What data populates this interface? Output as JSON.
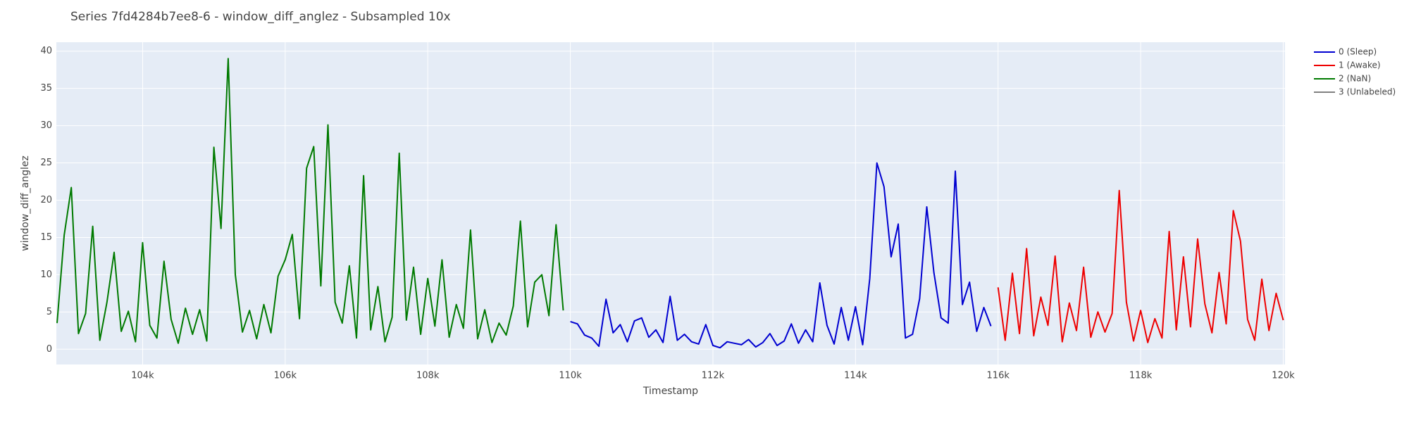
{
  "chart_data": {
    "type": "line",
    "title": "Series 7fd4284b7ee8-6 - window_diff_anglez - Subsampled 10x",
    "x_label": "Timestamp",
    "y_label": "window_diff_anglez",
    "xlim": [
      102790,
      120025
    ],
    "ylim": [
      -2.05,
      41.2
    ],
    "xticks": [
      {
        "value": 104000,
        "label": "104k"
      },
      {
        "value": 106000,
        "label": "106k"
      },
      {
        "value": 108000,
        "label": "108k"
      },
      {
        "value": 110000,
        "label": "110k"
      },
      {
        "value": 112000,
        "label": "112k"
      },
      {
        "value": 114000,
        "label": "114k"
      },
      {
        "value": 116000,
        "label": "116k"
      },
      {
        "value": 118000,
        "label": "118k"
      },
      {
        "value": 120000,
        "label": "120k"
      }
    ],
    "yticks": [
      0,
      5,
      10,
      15,
      20,
      25,
      30,
      35,
      40
    ],
    "grid": true,
    "legend": "right",
    "series": [
      {
        "name": "0 (Sleep)",
        "color": "#0000d0",
        "x": [
          110000,
          110100,
          110200,
          110300,
          110400,
          110500,
          110600,
          110700,
          110800,
          110900,
          111000,
          111100,
          111200,
          111300,
          111400,
          111500,
          111600,
          111700,
          111800,
          111900,
          112000,
          112100,
          112200,
          112300,
          112400,
          112500,
          112600,
          112700,
          112800,
          112900,
          113000,
          113100,
          113200,
          113300,
          113400,
          113500,
          113600,
          113700,
          113800,
          113900,
          114000,
          114100,
          114200,
          114300,
          114400,
          114500,
          114600,
          114700,
          114800,
          114900,
          115000,
          115100,
          115200,
          115300,
          115400,
          115500,
          115600,
          115700,
          115800,
          115900
        ],
        "values": [
          3.7,
          3.4,
          1.9,
          1.5,
          0.4,
          6.7,
          2.2,
          3.3,
          1.0,
          3.8,
          4.2,
          1.6,
          2.6,
          0.9,
          7.1,
          1.2,
          2.0,
          1.0,
          0.7,
          3.3,
          0.5,
          0.2,
          1.0,
          0.8,
          0.6,
          1.3,
          0.3,
          0.9,
          2.1,
          0.5,
          1.1,
          3.4,
          0.8,
          2.6,
          1.0,
          8.9,
          3.2,
          0.7,
          5.6,
          1.2,
          5.7,
          0.6,
          9.5,
          25.0,
          21.8,
          12.4,
          16.8,
          1.5,
          2.0,
          6.8,
          19.1,
          10.3,
          4.2,
          3.5,
          23.9,
          6.0,
          9.0,
          2.4,
          5.6,
          3.1
        ]
      },
      {
        "name": "1 (Awake)",
        "color": "#ee0000",
        "x": [
          116000,
          116100,
          116200,
          116300,
          116400,
          116500,
          116600,
          116700,
          116800,
          116900,
          117000,
          117100,
          117200,
          117300,
          117400,
          117500,
          117600,
          117700,
          117800,
          117900,
          118000,
          118100,
          118200,
          118300,
          118400,
          118500,
          118600,
          118700,
          118800,
          118900,
          119000,
          119100,
          119200,
          119300,
          119400,
          119500,
          119600,
          119700,
          119800,
          119900,
          120000
        ],
        "values": [
          8.3,
          1.2,
          10.2,
          2.1,
          13.5,
          1.8,
          7.0,
          3.2,
          12.5,
          1.0,
          6.2,
          2.5,
          11.0,
          1.6,
          5.0,
          2.3,
          4.8,
          21.3,
          6.3,
          1.1,
          5.2,
          0.9,
          4.1,
          1.5,
          15.8,
          2.6,
          12.4,
          3.0,
          14.8,
          6.1,
          2.2,
          10.3,
          3.4,
          18.6,
          14.5,
          4.0,
          1.2,
          9.4,
          2.5,
          7.5,
          3.9
        ]
      },
      {
        "name": "2 (NaN)",
        "color": "#007a00",
        "x": [
          102800,
          102900,
          103000,
          103100,
          103200,
          103300,
          103400,
          103500,
          103600,
          103700,
          103800,
          103900,
          104000,
          104100,
          104200,
          104300,
          104400,
          104500,
          104600,
          104700,
          104800,
          104900,
          105000,
          105100,
          105200,
          105300,
          105400,
          105500,
          105600,
          105700,
          105800,
          105900,
          106000,
          106100,
          106200,
          106300,
          106400,
          106500,
          106600,
          106700,
          106800,
          106900,
          107000,
          107100,
          107200,
          107300,
          107400,
          107500,
          107600,
          107700,
          107800,
          107900,
          108000,
          108100,
          108200,
          108300,
          108400,
          108500,
          108600,
          108700,
          108800,
          108900,
          109000,
          109100,
          109200,
          109300,
          109400,
          109500,
          109600,
          109700,
          109800,
          109900
        ],
        "values": [
          3.5,
          15.3,
          21.7,
          2.1,
          4.8,
          16.5,
          1.2,
          6.3,
          13.0,
          2.4,
          5.1,
          1.0,
          14.3,
          3.2,
          1.5,
          11.8,
          4.0,
          0.8,
          5.5,
          2.0,
          5.3,
          1.1,
          27.1,
          16.2,
          39.0,
          10.0,
          2.3,
          5.2,
          1.4,
          6.0,
          2.2,
          9.8,
          12.0,
          15.4,
          4.1,
          24.3,
          27.2,
          8.5,
          30.1,
          6.3,
          3.5,
          11.2,
          1.5,
          23.3,
          2.6,
          8.4,
          1.0,
          4.3,
          26.3,
          3.9,
          11.0,
          2.0,
          9.5,
          3.1,
          12.0,
          1.6,
          6.0,
          2.8,
          16.0,
          1.4,
          5.3,
          0.9,
          3.5,
          1.9,
          5.8,
          17.2,
          3.0,
          9.0,
          10.0,
          4.5,
          16.7,
          5.2
        ]
      },
      {
        "name": "3 (Unlabeled)",
        "color": "#808080",
        "x": [],
        "values": []
      }
    ]
  }
}
